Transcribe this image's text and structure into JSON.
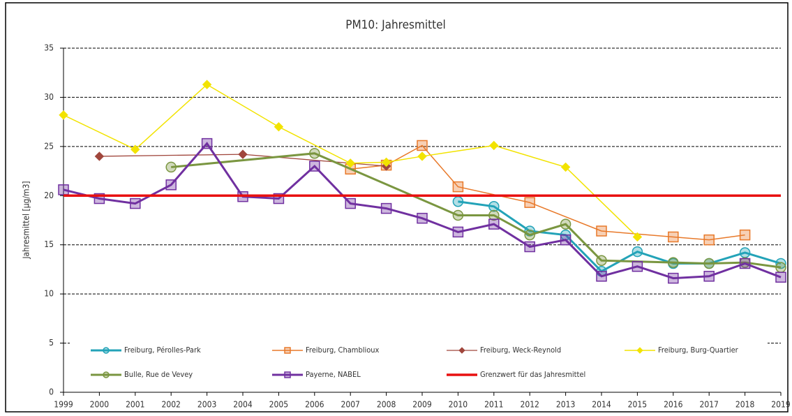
{
  "chart_data": {
    "type": "line",
    "title": "PM10: Jahresmittel",
    "y_label": "Jahresmittel [µg/m3]",
    "xlim": [
      1999,
      2019
    ],
    "xticks": [
      1999,
      2000,
      2001,
      2002,
      2003,
      2004,
      2005,
      2006,
      2007,
      2008,
      2009,
      2010,
      2011,
      2012,
      2013,
      2014,
      2015,
      2016,
      2017,
      2018,
      2019
    ],
    "ylim": [
      0,
      35
    ],
    "yticks": [
      0,
      5,
      10,
      15,
      20,
      25,
      30,
      35
    ],
    "grid": true,
    "legend": "bottom",
    "series": [
      {
        "name": "Freiburg, Pérolles-Park",
        "color": "#23a3b8",
        "marker": "circle",
        "x": [
          2010,
          2011,
          2012,
          2013,
          2014,
          2015,
          2016,
          2017,
          2018,
          2019
        ],
        "values": [
          19.4,
          18.9,
          16.4,
          16.0,
          12.3,
          14.3,
          13.1,
          13.1,
          14.2,
          13.1
        ]
      },
      {
        "name": "Freiburg, Chamblioux",
        "color": "#e8792a",
        "marker": "square",
        "x": [
          2007,
          2008,
          2009,
          2010,
          2012,
          2014,
          2016,
          2017,
          2018
        ],
        "values": [
          22.7,
          23.1,
          25.1,
          20.9,
          19.3,
          16.4,
          15.8,
          15.5,
          16.0
        ]
      },
      {
        "name": "Freiburg, Weck-Reynold",
        "color": "#a0463c",
        "marker": "diamond",
        "x": [
          2000,
          2004,
          2008
        ],
        "values": [
          24.0,
          24.2,
          23.0
        ]
      },
      {
        "name": "Freiburg, Burg-Quartier",
        "color": "#f2e300",
        "marker": "diamond",
        "x": [
          1999,
          2001,
          2003,
          2005,
          2007,
          2008,
          2009,
          2011,
          2013,
          2015
        ],
        "values": [
          28.2,
          24.7,
          31.3,
          27.0,
          23.3,
          23.4,
          24.0,
          25.1,
          22.9,
          15.8
        ]
      },
      {
        "name": "Bulle, Rue de Vevey",
        "color": "#7a9640",
        "marker": "circle",
        "x": [
          2002,
          2006,
          2010,
          2011,
          2012,
          2013,
          2014,
          2016,
          2017,
          2018,
          2019
        ],
        "values": [
          22.9,
          24.3,
          18.0,
          18.0,
          16.0,
          17.1,
          13.4,
          13.2,
          13.1,
          13.2,
          12.7
        ]
      },
      {
        "name": "Payerne, NABEL",
        "color": "#7030a0",
        "marker": "square",
        "x": [
          1999,
          2000,
          2001,
          2002,
          2003,
          2004,
          2005,
          2006,
          2007,
          2008,
          2009,
          2010,
          2011,
          2012,
          2013,
          2014,
          2015,
          2016,
          2017,
          2018,
          2019
        ],
        "values": [
          20.6,
          19.7,
          19.2,
          21.1,
          25.3,
          19.9,
          19.7,
          23.0,
          19.2,
          18.7,
          17.7,
          16.3,
          17.1,
          14.8,
          15.5,
          11.8,
          12.8,
          11.6,
          11.8,
          13.1,
          11.7
        ]
      },
      {
        "name": "Grenzwert für das Jahresmittel",
        "color": "#e81010",
        "marker": "none",
        "x": [
          1999,
          2019
        ],
        "values": [
          20,
          20
        ]
      }
    ]
  }
}
